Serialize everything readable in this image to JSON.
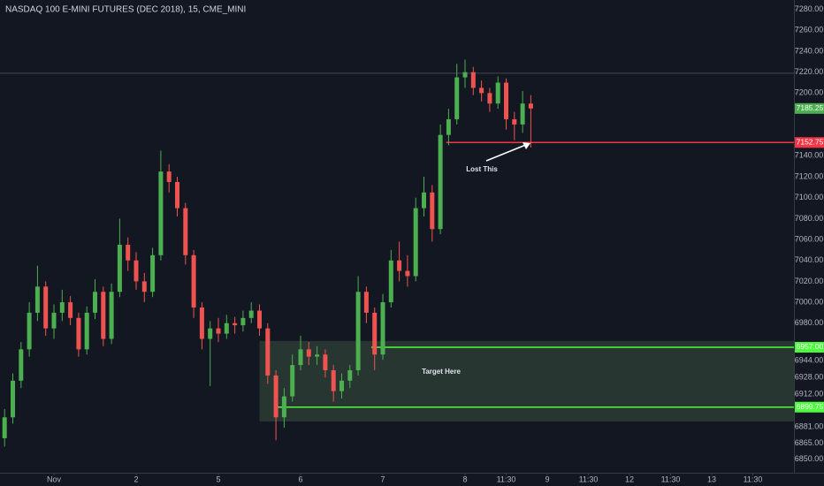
{
  "chart_data": {
    "type": "candlestick",
    "title": "NASDAQ 100 E-MINI FUTURES (DEC 2018), 15, CME_MINI",
    "up_color": "#4caf50",
    "down_color": "#ef5350",
    "x": [
      -0.6,
      -0.5,
      -0.4,
      -0.3,
      -0.2,
      -0.1,
      0.0,
      0.1,
      0.2,
      0.3,
      0.4,
      0.5,
      0.6,
      0.7,
      0.8,
      0.9,
      1.0,
      1.1,
      1.2,
      1.3,
      1.4,
      1.5,
      1.6,
      1.7,
      1.8,
      1.9,
      2.0,
      2.1,
      2.2,
      2.3,
      2.4,
      2.5,
      2.6,
      2.7,
      2.8,
      2.9,
      3.0,
      3.1,
      3.2,
      3.3,
      3.4,
      3.5,
      3.6,
      3.7,
      3.8,
      3.9,
      4.0,
      4.1,
      4.2,
      4.3,
      4.4,
      4.5,
      4.6,
      4.7,
      4.8,
      4.9,
      5.0,
      5.1,
      5.2,
      5.3,
      5.4,
      5.5,
      5.6,
      5.7,
      5.8
    ],
    "open": [
      6870,
      6890,
      6925,
      6955,
      6990,
      7015,
      6975,
      6990,
      7000,
      6985,
      6955,
      6990,
      7010,
      6965,
      7010,
      7055,
      7040,
      7020,
      7010,
      7045,
      7125,
      7115,
      7090,
      7045,
      6995,
      6965,
      6975,
      6970,
      6980,
      6978,
      6985,
      6992,
      6975,
      6930,
      6890,
      6910,
      6940,
      6955,
      6948,
      6950,
      6935,
      6915,
      6925,
      6935,
      7010,
      6990,
      6950,
      7000,
      7040,
      7030,
      7025,
      7090,
      7105,
      7070,
      7160,
      7175,
      7215,
      7220,
      7205,
      7200,
      7190,
      7210,
      7175,
      7170,
      7190
    ],
    "high": [
      6898,
      6932,
      6962,
      7000,
      7035,
      7020,
      6998,
      7012,
      7006,
      6990,
      6996,
      7022,
      7015,
      7018,
      7080,
      7062,
      7048,
      7028,
      7052,
      7145,
      7132,
      7120,
      7095,
      7050,
      7000,
      6982,
      6985,
      6988,
      6986,
      6992,
      7000,
      6998,
      6980,
      6935,
      6918,
      6950,
      6968,
      6962,
      6958,
      6955,
      6940,
      6932,
      6940,
      7025,
      7015,
      6995,
      7008,
      7050,
      7058,
      7045,
      7100,
      7120,
      7112,
      7170,
      7185,
      7228,
      7232,
      7225,
      7212,
      7205,
      7216,
      7214,
      7182,
      7202,
      7198
    ],
    "low": [
      6862,
      6884,
      6918,
      6948,
      6982,
      6968,
      6965,
      6982,
      6978,
      6948,
      6950,
      6984,
      6958,
      6960,
      7005,
      7030,
      7012,
      7000,
      7005,
      7040,
      7105,
      7082,
      7036,
      6985,
      6955,
      6920,
      6962,
      6965,
      6970,
      6972,
      6980,
      6968,
      6922,
      6868,
      6880,
      6905,
      6935,
      6940,
      6940,
      6928,
      6905,
      6908,
      6918,
      6930,
      6980,
      6935,
      6945,
      6995,
      7020,
      7015,
      7020,
      7082,
      7058,
      7065,
      7150,
      7170,
      7205,
      7198,
      7192,
      7182,
      7185,
      7165,
      7155,
      7162,
      7148
    ],
    "close": [
      6890,
      6925,
      6955,
      6990,
      7015,
      6975,
      6990,
      7000,
      6985,
      6955,
      6990,
      7010,
      6965,
      7010,
      7055,
      7040,
      7020,
      7010,
      7045,
      7125,
      7115,
      7090,
      7045,
      6995,
      6965,
      6975,
      6970,
      6980,
      6978,
      6985,
      6992,
      6975,
      6930,
      6890,
      6910,
      6940,
      6955,
      6948,
      6950,
      6935,
      6915,
      6925,
      6935,
      7010,
      6990,
      6950,
      7000,
      7040,
      7030,
      7025,
      7090,
      7105,
      7070,
      7160,
      7175,
      7215,
      7220,
      7205,
      7200,
      7190,
      7210,
      7175,
      7170,
      7190,
      7185.25
    ],
    "xlim": [
      -0.656,
      9.0
    ],
    "ylim": [
      6837,
      7289
    ],
    "xticks": [
      {
        "value": 0,
        "label": "Nov"
      },
      {
        "value": 1,
        "label": "2"
      },
      {
        "value": 2,
        "label": "5"
      },
      {
        "value": 3,
        "label": "6"
      },
      {
        "value": 4,
        "label": "7"
      },
      {
        "value": 5,
        "label": "8"
      },
      {
        "value": 5.5,
        "label": "11:30"
      },
      {
        "value": 6,
        "label": "9"
      },
      {
        "value": 6.5,
        "label": "11:30"
      },
      {
        "value": 7,
        "label": "12"
      },
      {
        "value": 7.5,
        "label": "11:30"
      },
      {
        "value": 8,
        "label": "13"
      },
      {
        "value": 8.5,
        "label": "11:30"
      }
    ],
    "yticks": [
      {
        "value": 7280,
        "label": "7280.00"
      },
      {
        "value": 7260,
        "label": "7260.00"
      },
      {
        "value": 7240,
        "label": "7240.00"
      },
      {
        "value": 7220,
        "label": "7220.00"
      },
      {
        "value": 7200,
        "label": "7200.00"
      },
      {
        "value": 7140,
        "label": "7140.00"
      },
      {
        "value": 7120,
        "label": "7120.00"
      },
      {
        "value": 7100,
        "label": "7100.00"
      },
      {
        "value": 7080,
        "label": "7080.00"
      },
      {
        "value": 7060,
        "label": "7060.00"
      },
      {
        "value": 7040,
        "label": "7040.00"
      },
      {
        "value": 7020,
        "label": "7020.00"
      },
      {
        "value": 7000,
        "label": "7000.00"
      },
      {
        "value": 6980,
        "label": "6980.00"
      },
      {
        "value": 6944,
        "label": "6944.00"
      },
      {
        "value": 6928,
        "label": "6928.00"
      },
      {
        "value": 6912,
        "label": "6912.00"
      },
      {
        "value": 6881,
        "label": "6881.00"
      },
      {
        "value": 6865,
        "label": "6865.00"
      },
      {
        "value": 6850,
        "label": "6850.00"
      }
    ],
    "price_lines": [
      {
        "value": 7219,
        "color": "#434651",
        "from": -0.656
      },
      {
        "value": 7152.75,
        "color": "#f23645",
        "from": 4.77
      },
      {
        "value": {
          "value": 6957,
          "label": "6957.00"
        },
        "color": "#4cff3c",
        "from": 3.86
      },
      {
        "value": 6899.75,
        "color": "#4cff3c",
        "from": 2.68
      }
    ],
    "last_price": {
      "value": 7185.25,
      "color": "#4caf50"
    },
    "zone": {
      "top": 6963,
      "bottom": 6886,
      "from": 2.5,
      "color": "#2b3a34"
    },
    "annotations": [
      "Lost This",
      "Target Here"
    ]
  }
}
